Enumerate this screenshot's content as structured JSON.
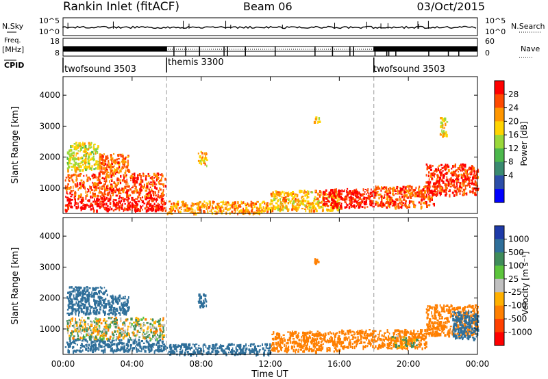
{
  "header": {
    "station": "Rankin Inlet (fitACF)",
    "beam": "Beam 06",
    "date": "03/Oct/2015"
  },
  "status_panel": {
    "nsky_label": "N.Sky",
    "nsky_ticks": [
      "10^5",
      "10^0"
    ],
    "nsearch_label": "N.Search",
    "nsearch_ticks": [
      "10^5",
      "10^0"
    ],
    "freq_label": "Freq.",
    "freq_unit": "[MHz]",
    "freq_ticks": [
      "18",
      "8"
    ],
    "nave_label": "Nave",
    "nave_ticks": [
      "60",
      "0"
    ],
    "cpid_label": "CPID",
    "cpid_segments": [
      {
        "name": "twofsound 3503",
        "start": 0,
        "end": 6
      },
      {
        "name": "themis 3300",
        "start": 6,
        "end": 18
      },
      {
        "name": "twofsound 3503",
        "start": 18,
        "end": 24
      }
    ]
  },
  "axes": {
    "x_ticks": [
      "00:00",
      "04:00",
      "08:00",
      "12:00",
      "16:00",
      "20:00",
      "00:00"
    ],
    "xlabel": "Time UT",
    "ylabel": "Slant Range [km]",
    "y_ticks": [
      "1000",
      "2000",
      "3000",
      "4000"
    ]
  },
  "power_colorbar": {
    "label": "Power [dB]",
    "ticks": [
      "28",
      "24",
      "20",
      "16",
      "12",
      "8",
      "4"
    ],
    "colors": [
      "#ff0000",
      "#ff4a00",
      "#ff9600",
      "#ffd400",
      "#9ad83a",
      "#4cb84c",
      "#3a8a70",
      "#2c4ea8",
      "#0000ff"
    ]
  },
  "velocity_colorbar": {
    "label": "Velocity [m s⁻¹]",
    "ticks": [
      "1000",
      "500",
      "100",
      "25",
      "-25",
      "-100",
      "-500",
      "-1000"
    ],
    "colors": [
      "#1e3aa8",
      "#2f6f9a",
      "#3f8c5a",
      "#5cc43c",
      "#c0c0c0",
      "#ffb000",
      "#ff7f00",
      "#ff4000",
      "#ff0000"
    ]
  },
  "chart_data": [
    {
      "type": "heatmap",
      "title": "Power",
      "xlabel": "Time UT",
      "ylabel": "Slant Range [km]",
      "xlim": [
        0,
        24
      ],
      "ylim": [
        180,
        4600
      ],
      "colorbar": "Power [dB]",
      "regions": [
        {
          "t0": 0.1,
          "t1": 5.9,
          "r0": 300,
          "r1": 750,
          "value": 28
        },
        {
          "t0": 0.1,
          "t1": 5.9,
          "r0": 750,
          "r1": 1500,
          "value": 24
        },
        {
          "t0": 0.2,
          "t1": 2.0,
          "r0": 1600,
          "r1": 2500,
          "value": 14
        },
        {
          "t0": 2.0,
          "t1": 3.8,
          "r0": 1500,
          "r1": 2150,
          "value": 22
        },
        {
          "t0": 6.0,
          "t1": 12.0,
          "r0": 200,
          "r1": 600,
          "value": 20
        },
        {
          "t0": 7.8,
          "t1": 8.3,
          "r0": 1750,
          "r1": 2200,
          "value": 18
        },
        {
          "t0": 12.0,
          "t1": 16.0,
          "r0": 300,
          "r1": 950,
          "value": 18
        },
        {
          "t0": 14.5,
          "t1": 14.8,
          "r0": 3150,
          "r1": 3350,
          "value": 16
        },
        {
          "t0": 15.0,
          "t1": 18.0,
          "r0": 400,
          "r1": 1000,
          "value": 28
        },
        {
          "t0": 18.0,
          "t1": 21.5,
          "r0": 400,
          "r1": 1100,
          "value": 24
        },
        {
          "t0": 21.0,
          "t1": 24.0,
          "r0": 800,
          "r1": 1800,
          "value": 26
        },
        {
          "t0": 21.8,
          "t1": 22.2,
          "r0": 2700,
          "r1": 3300,
          "value": 16
        }
      ]
    },
    {
      "type": "heatmap",
      "title": "Velocity",
      "xlabel": "Time UT",
      "ylabel": "Slant Range [km]",
      "xlim": [
        0,
        24
      ],
      "ylim": [
        180,
        4600
      ],
      "colorbar": "Velocity [m s⁻¹]",
      "regions": [
        {
          "t0": 0.1,
          "t1": 5.9,
          "r0": 300,
          "r1": 700,
          "value": 300
        },
        {
          "t0": 0.2,
          "t1": 5.8,
          "r0": 700,
          "r1": 1400,
          "value": 0
        },
        {
          "t0": 0.2,
          "t1": 2.5,
          "r0": 1500,
          "r1": 2400,
          "value": 300
        },
        {
          "t0": 2.5,
          "t1": 3.8,
          "r0": 1500,
          "r1": 2150,
          "value": 300
        },
        {
          "t0": 6.0,
          "t1": 12.0,
          "r0": 200,
          "r1": 550,
          "value": 300
        },
        {
          "t0": 7.8,
          "t1": 8.3,
          "r0": 1750,
          "r1": 2200,
          "value": 300
        },
        {
          "t0": 12.0,
          "t1": 16.0,
          "r0": 300,
          "r1": 950,
          "value": -300
        },
        {
          "t0": 14.5,
          "t1": 14.8,
          "r0": 3150,
          "r1": 3350,
          "value": -300
        },
        {
          "t0": 16.0,
          "t1": 21.0,
          "r0": 400,
          "r1": 1000,
          "value": -300
        },
        {
          "t0": 19.0,
          "t1": 20.5,
          "r0": 450,
          "r1": 800,
          "value": 0
        },
        {
          "t0": 21.0,
          "t1": 24.0,
          "r0": 800,
          "r1": 1800,
          "value": -300
        },
        {
          "t0": 22.5,
          "t1": 24.0,
          "r0": 700,
          "r1": 1600,
          "value": 300
        }
      ]
    }
  ]
}
